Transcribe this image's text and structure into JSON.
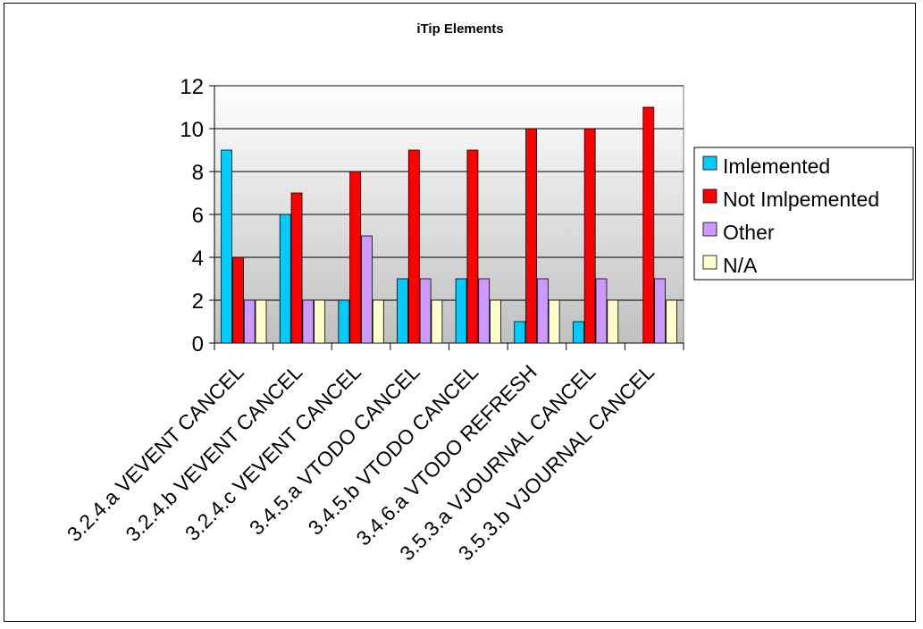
{
  "chart_data": {
    "type": "bar",
    "title": "iTip Elements",
    "xlabel": "",
    "ylabel": "",
    "ylim": [
      0,
      12
    ],
    "yticks": [
      0,
      2,
      4,
      6,
      8,
      10,
      12
    ],
    "grid": true,
    "legend_position": "right",
    "categories": [
      "3.2.4.a VEVENT CANCEL",
      "3.2.4.b VEVENT CANCEL",
      "3.2.4.c VEVENT CANCEL",
      "3.4.5.a VTODO CANCEL",
      "3.4.5.b VTODO CANCEL",
      "3.4.6.a VTODO REFRESH",
      "3.5.3.a VJOURNAL CANCEL",
      "3.5.3.b VJOURNAL CANCEL"
    ],
    "series": [
      {
        "name": "Imlemented",
        "color": "#00ccff",
        "values": [
          9,
          6,
          2,
          3,
          3,
          1,
          1,
          0
        ]
      },
      {
        "name": "Not Imlpemented",
        "color": "#ff0000",
        "values": [
          4,
          7,
          8,
          9,
          9,
          10,
          10,
          11
        ]
      },
      {
        "name": "Other",
        "color": "#cc99ff",
        "values": [
          2,
          2,
          5,
          3,
          3,
          3,
          3,
          3
        ]
      },
      {
        "name": "N/A",
        "color": "#ffffcc",
        "values": [
          2,
          2,
          2,
          2,
          2,
          2,
          2,
          2
        ]
      }
    ]
  }
}
